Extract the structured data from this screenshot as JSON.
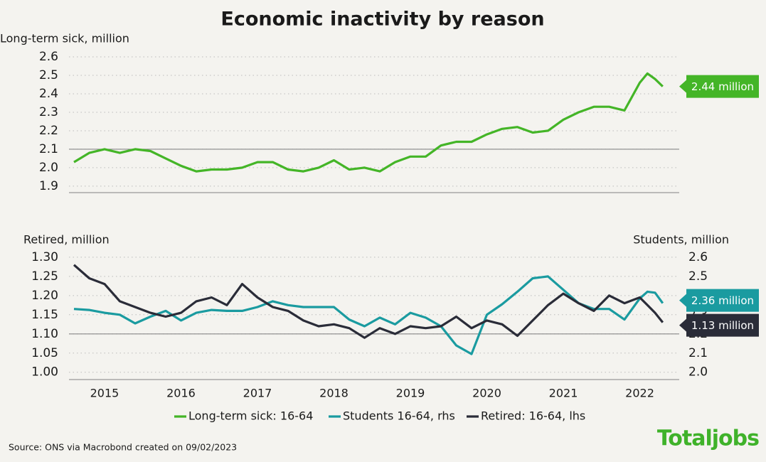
{
  "title": "Economic inactivity by reason",
  "chart_data": [
    {
      "type": "line",
      "ylabel": "Long-term sick, million",
      "x": [
        2015.1,
        2015.3,
        2015.5,
        2015.7,
        2015.9,
        2016.1,
        2016.3,
        2016.5,
        2016.7,
        2016.9,
        2017.1,
        2017.3,
        2017.5,
        2017.7,
        2017.9,
        2018.1,
        2018.3,
        2018.5,
        2018.7,
        2018.9,
        2019.1,
        2019.3,
        2019.5,
        2019.7,
        2019.9,
        2020.1,
        2020.3,
        2020.5,
        2020.7,
        2020.9,
        2021.1,
        2021.3,
        2021.5,
        2021.7,
        2021.9,
        2022.1,
        2022.3,
        2022.5,
        2022.6,
        2022.7,
        2022.8
      ],
      "xlim": [
        2015.035,
        2023.016
      ],
      "ylim": [
        1.865,
        2.65
      ],
      "yticks": [
        1.9,
        {
          "value": 2,
          "label": "2.0"
        },
        2.1,
        2.2,
        2.3,
        2.4,
        2.5,
        2.6
      ],
      "reference_line": 2.1,
      "grid": true,
      "series": [
        {
          "name": "Long-term sick: 16-64",
          "color": "#44b527",
          "end_label": "2.44 million",
          "values": [
            2.03,
            2.08,
            2.1,
            2.08,
            2.1,
            2.09,
            2.05,
            2.01,
            1.98,
            1.99,
            1.99,
            2.0,
            2.03,
            2.03,
            1.99,
            1.98,
            2.0,
            2.04,
            1.99,
            2.0,
            1.98,
            2.03,
            2.06,
            2.06,
            2.12,
            2.14,
            2.14,
            2.18,
            2.21,
            2.22,
            2.19,
            2.2,
            2.26,
            2.3,
            2.33,
            2.33,
            2.31,
            2.46,
            2.51,
            2.48,
            2.44
          ]
        }
      ]
    },
    {
      "type": "line",
      "ylabel": "Retired, million",
      "y2label": "Students, million",
      "x": [
        2015.1,
        2015.3,
        2015.5,
        2015.7,
        2015.9,
        2016.1,
        2016.3,
        2016.5,
        2016.7,
        2016.9,
        2017.1,
        2017.3,
        2017.5,
        2017.7,
        2017.9,
        2018.1,
        2018.3,
        2018.5,
        2018.7,
        2018.9,
        2019.1,
        2019.3,
        2019.5,
        2019.7,
        2019.9,
        2020.1,
        2020.3,
        2020.5,
        2020.7,
        2020.9,
        2021.1,
        2021.3,
        2021.5,
        2021.7,
        2021.9,
        2022.1,
        2022.3,
        2022.5,
        2022.6,
        2022.7,
        2022.8
      ],
      "xlim": [
        2015.035,
        2023.016
      ],
      "xticks": [
        {
          "value": 2015.5,
          "label": "2015"
        },
        {
          "value": 2016.5,
          "label": "2016"
        },
        {
          "value": 2017.5,
          "label": "2017"
        },
        {
          "value": 2018.5,
          "label": "2018"
        },
        {
          "value": 2019.5,
          "label": "2019"
        },
        {
          "value": 2020.5,
          "label": "2020"
        },
        {
          "value": 2021.5,
          "label": "2021"
        },
        {
          "value": 2022.5,
          "label": "2022"
        }
      ],
      "ylim": [
        0.981,
        1.322
      ],
      "yticks": [
        {
          "value": 1,
          "label": "1.00"
        },
        1.05,
        {
          "value": 1.1,
          "label": "1.10"
        },
        1.15,
        {
          "value": 1.2,
          "label": "1.20"
        },
        1.25,
        {
          "value": 1.3,
          "label": "1.30"
        }
      ],
      "y2lim": [
        1.962,
        2.644
      ],
      "y2ticks": [
        {
          "value": 2,
          "label": "2.0"
        },
        2.1,
        2.2,
        2.3,
        2.4,
        2.5,
        2.6
      ],
      "reference_line": 1.1,
      "grid": true,
      "series": [
        {
          "name": "Students 16-64, rhs",
          "color": "#1a9ba0",
          "axis": "y2",
          "end_label": "2.36 million",
          "values": [
            2.33,
            2.325,
            2.31,
            2.3,
            2.255,
            2.29,
            2.32,
            2.27,
            2.31,
            2.325,
            2.32,
            2.32,
            2.34,
            2.37,
            2.35,
            2.34,
            2.34,
            2.34,
            2.275,
            2.24,
            2.285,
            2.25,
            2.31,
            2.285,
            2.24,
            2.14,
            2.095,
            2.3,
            2.355,
            2.42,
            2.49,
            2.5,
            2.43,
            2.36,
            2.33,
            2.33,
            2.275,
            2.385,
            2.42,
            2.415,
            2.36
          ]
        },
        {
          "name": "Retired: 16-64, lhs",
          "color": "#2a2c38",
          "axis": "y",
          "end_label": "1.13 million",
          "values": [
            1.28,
            1.245,
            1.23,
            1.185,
            1.17,
            1.155,
            1.145,
            1.155,
            1.185,
            1.195,
            1.175,
            1.23,
            1.195,
            1.17,
            1.16,
            1.135,
            1.12,
            1.125,
            1.115,
            1.09,
            1.115,
            1.1,
            1.12,
            1.115,
            1.12,
            1.145,
            1.115,
            1.135,
            1.125,
            1.095,
            1.135,
            1.175,
            1.205,
            1.18,
            1.16,
            1.2,
            1.18,
            1.195,
            1.175,
            1.155,
            1.13
          ]
        }
      ]
    }
  ],
  "footer": {
    "source": "Source: ONS via Macrobond created on 09/02/2023",
    "logo": "Totaljobs"
  }
}
